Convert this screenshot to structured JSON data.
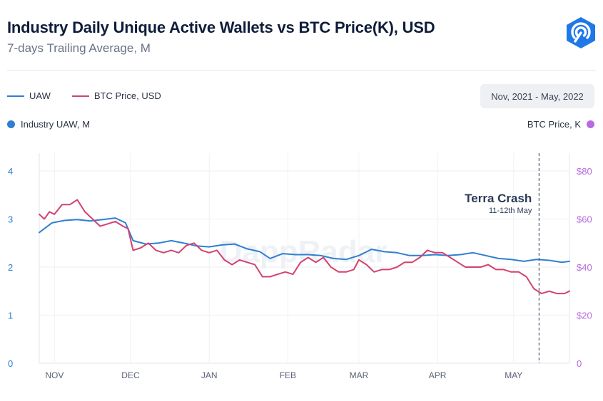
{
  "header": {
    "title": "Industry Daily Unique Active Wallets vs BTC Price(K), USD",
    "subtitle": "7-days Trailing Average, M"
  },
  "colors": {
    "uaw": "#2f7fd1",
    "btc": "#d2426f",
    "left_axis": "#2f7fd1",
    "right_axis": "#b86ae0",
    "annotation": "#2a3a57",
    "logo": "#1f78e8"
  },
  "legend": {
    "uaw_label": "UAW",
    "btc_label": "BTC Price, USD"
  },
  "date_range": "Nov, 2021 - May, 2022",
  "axes": {
    "left_title": "Industry UAW, M",
    "right_title": "BTC Price, K"
  },
  "chart_data": {
    "type": "line",
    "x_range": [
      "2021-10-26",
      "2022-05-23"
    ],
    "x_ticks": [
      {
        "label": "NOV",
        "date": "2021-11-01"
      },
      {
        "label": "DEC",
        "date": "2021-12-01"
      },
      {
        "label": "JAN",
        "date": "2022-01-01"
      },
      {
        "label": "FEB",
        "date": "2022-02-01"
      },
      {
        "label": "MAR",
        "date": "2022-03-01"
      },
      {
        "label": "APR",
        "date": "2022-04-01"
      },
      {
        "label": "MAY",
        "date": "2022-05-01"
      }
    ],
    "y_left": {
      "min": 0,
      "max": 4,
      "ticks": [
        "0",
        "1",
        "2",
        "3",
        "4"
      ]
    },
    "y_right": {
      "min": 0,
      "max": 80,
      "ticks": [
        "0",
        "$20",
        "$40",
        "$60",
        "$80"
      ]
    },
    "grid": true,
    "annotation": {
      "date": "2022-05-11",
      "title": "Terra Crash",
      "subtitle": "11-12th May"
    },
    "series": [
      {
        "name": "UAW",
        "axis": "left",
        "points": [
          [
            "2021-10-26",
            2.72
          ],
          [
            "2021-10-31",
            2.92
          ],
          [
            "2021-11-05",
            2.97
          ],
          [
            "2021-11-10",
            2.99
          ],
          [
            "2021-11-15",
            2.96
          ],
          [
            "2021-11-20",
            2.99
          ],
          [
            "2021-11-25",
            3.02
          ],
          [
            "2021-11-29",
            2.92
          ],
          [
            "2021-12-02",
            2.55
          ],
          [
            "2021-12-07",
            2.48
          ],
          [
            "2021-12-12",
            2.5
          ],
          [
            "2021-12-17",
            2.55
          ],
          [
            "2021-12-22",
            2.5
          ],
          [
            "2021-12-27",
            2.44
          ],
          [
            "2022-01-01",
            2.42
          ],
          [
            "2022-01-06",
            2.46
          ],
          [
            "2022-01-11",
            2.48
          ],
          [
            "2022-01-16",
            2.38
          ],
          [
            "2022-01-21",
            2.32
          ],
          [
            "2022-01-25",
            2.18
          ],
          [
            "2022-01-30",
            2.28
          ],
          [
            "2022-02-04",
            2.26
          ],
          [
            "2022-02-09",
            2.26
          ],
          [
            "2022-02-14",
            2.24
          ],
          [
            "2022-02-19",
            2.18
          ],
          [
            "2022-02-24",
            2.16
          ],
          [
            "2022-03-01",
            2.24
          ],
          [
            "2022-03-06",
            2.37
          ],
          [
            "2022-03-11",
            2.32
          ],
          [
            "2022-03-16",
            2.3
          ],
          [
            "2022-03-21",
            2.24
          ],
          [
            "2022-03-26",
            2.24
          ],
          [
            "2022-03-31",
            2.26
          ],
          [
            "2022-04-05",
            2.24
          ],
          [
            "2022-04-10",
            2.26
          ],
          [
            "2022-04-15",
            2.3
          ],
          [
            "2022-04-20",
            2.24
          ],
          [
            "2022-04-25",
            2.18
          ],
          [
            "2022-04-30",
            2.16
          ],
          [
            "2022-05-05",
            2.12
          ],
          [
            "2022-05-10",
            2.16
          ],
          [
            "2022-05-15",
            2.14
          ],
          [
            "2022-05-20",
            2.1
          ],
          [
            "2022-05-23",
            2.12
          ]
        ]
      },
      {
        "name": "BTC Price, USD",
        "axis": "right",
        "points": [
          [
            "2021-10-26",
            62
          ],
          [
            "2021-10-28",
            60
          ],
          [
            "2021-10-30",
            63
          ],
          [
            "2021-11-01",
            62
          ],
          [
            "2021-11-04",
            66
          ],
          [
            "2021-11-07",
            66
          ],
          [
            "2021-11-10",
            68
          ],
          [
            "2021-11-13",
            63
          ],
          [
            "2021-11-16",
            60
          ],
          [
            "2021-11-19",
            57
          ],
          [
            "2021-11-22",
            58
          ],
          [
            "2021-11-25",
            59
          ],
          [
            "2021-11-28",
            57
          ],
          [
            "2021-11-30",
            56
          ],
          [
            "2021-12-02",
            47
          ],
          [
            "2021-12-05",
            48
          ],
          [
            "2021-12-08",
            50
          ],
          [
            "2021-12-11",
            47
          ],
          [
            "2021-12-14",
            46
          ],
          [
            "2021-12-17",
            47
          ],
          [
            "2021-12-20",
            46
          ],
          [
            "2021-12-23",
            49
          ],
          [
            "2021-12-26",
            50
          ],
          [
            "2021-12-29",
            47
          ],
          [
            "2022-01-01",
            46
          ],
          [
            "2022-01-04",
            47
          ],
          [
            "2022-01-07",
            43
          ],
          [
            "2022-01-10",
            41
          ],
          [
            "2022-01-13",
            43
          ],
          [
            "2022-01-16",
            42
          ],
          [
            "2022-01-19",
            41
          ],
          [
            "2022-01-22",
            36
          ],
          [
            "2022-01-25",
            36
          ],
          [
            "2022-01-28",
            37
          ],
          [
            "2022-01-31",
            38
          ],
          [
            "2022-02-03",
            37
          ],
          [
            "2022-02-06",
            42
          ],
          [
            "2022-02-09",
            44
          ],
          [
            "2022-02-12",
            42
          ],
          [
            "2022-02-15",
            44
          ],
          [
            "2022-02-18",
            40
          ],
          [
            "2022-02-21",
            38
          ],
          [
            "2022-02-24",
            38
          ],
          [
            "2022-02-27",
            39
          ],
          [
            "2022-03-01",
            43
          ],
          [
            "2022-03-04",
            41
          ],
          [
            "2022-03-07",
            38
          ],
          [
            "2022-03-10",
            39
          ],
          [
            "2022-03-13",
            39
          ],
          [
            "2022-03-16",
            40
          ],
          [
            "2022-03-19",
            42
          ],
          [
            "2022-03-22",
            42
          ],
          [
            "2022-03-25",
            44
          ],
          [
            "2022-03-28",
            47
          ],
          [
            "2022-03-31",
            46
          ],
          [
            "2022-04-03",
            46
          ],
          [
            "2022-04-06",
            44
          ],
          [
            "2022-04-09",
            42
          ],
          [
            "2022-04-12",
            40
          ],
          [
            "2022-04-15",
            40
          ],
          [
            "2022-04-18",
            40
          ],
          [
            "2022-04-21",
            41
          ],
          [
            "2022-04-24",
            39
          ],
          [
            "2022-04-27",
            39
          ],
          [
            "2022-04-30",
            38
          ],
          [
            "2022-05-03",
            38
          ],
          [
            "2022-05-06",
            36
          ],
          [
            "2022-05-09",
            31
          ],
          [
            "2022-05-12",
            29
          ],
          [
            "2022-05-15",
            30
          ],
          [
            "2022-05-18",
            29
          ],
          [
            "2022-05-21",
            29
          ],
          [
            "2022-05-23",
            30
          ]
        ]
      }
    ]
  }
}
